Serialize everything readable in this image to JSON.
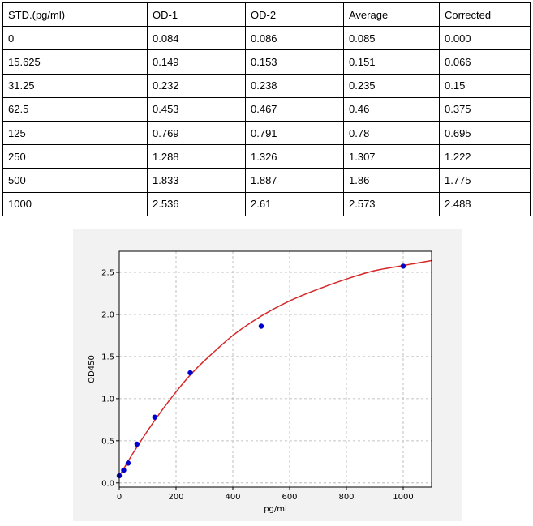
{
  "table": {
    "headers": [
      "STD.(pg/ml)",
      "OD-1",
      "OD-2",
      "Average",
      "Corrected"
    ],
    "rows": [
      [
        "0",
        "0.084",
        "0.086",
        "0.085",
        "0.000"
      ],
      [
        "15.625",
        "0.149",
        "0.153",
        "0.151",
        "0.066"
      ],
      [
        "31.25",
        "0.232",
        "0.238",
        "0.235",
        "0.15"
      ],
      [
        "62.5",
        "0.453",
        "0.467",
        "0.46",
        "0.375"
      ],
      [
        "125",
        "0.769",
        "0.791",
        "0.78",
        "0.695"
      ],
      [
        "250",
        "1.288",
        "1.326",
        "1.307",
        "1.222"
      ],
      [
        "500",
        "1.833",
        "1.887",
        "1.86",
        "1.775"
      ],
      [
        "1000",
        "2.536",
        "2.61",
        "2.573",
        "2.488"
      ]
    ]
  },
  "chart_data": {
    "type": "scatter",
    "xlabel": "pg/ml",
    "ylabel": "OD450",
    "xlim": [
      0,
      1100
    ],
    "ylim": [
      -0.05,
      2.75
    ],
    "xticks": [
      0,
      200,
      400,
      600,
      800,
      1000
    ],
    "xtick_labels": [
      "0",
      "200",
      "400",
      "600",
      "800",
      "1000"
    ],
    "yticks": [
      0.0,
      0.5,
      1.0,
      1.5,
      2.0,
      2.5
    ],
    "ytick_labels": [
      "0.0",
      "0.5",
      "1.0",
      "1.5",
      "2.0",
      "2.5"
    ],
    "grid": true,
    "series": [
      {
        "kind": "points",
        "color": "#0000cc",
        "x": [
          0,
          15.625,
          31.25,
          62.5,
          125,
          250,
          500,
          1000
        ],
        "y": [
          0.085,
          0.151,
          0.235,
          0.46,
          0.78,
          1.307,
          1.86,
          2.573
        ]
      },
      {
        "kind": "fit-curve",
        "color": "#d62728",
        "x": [
          0,
          50,
          100,
          150,
          200,
          250,
          300,
          400,
          500,
          600,
          700,
          800,
          900,
          1000,
          1100
        ],
        "y": [
          0.08,
          0.36,
          0.62,
          0.86,
          1.08,
          1.28,
          1.45,
          1.75,
          1.98,
          2.16,
          2.3,
          2.42,
          2.52,
          2.58,
          2.64
        ]
      }
    ]
  }
}
